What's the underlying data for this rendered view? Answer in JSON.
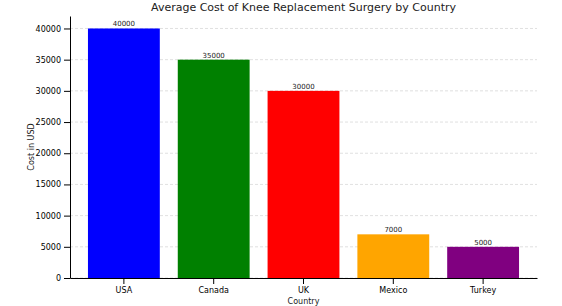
{
  "chart_data": {
    "type": "bar",
    "title": "Average Cost of Knee Replacement Surgery by Country",
    "x_label": "Country",
    "y_label": "Cost in USD",
    "categories": [
      "USA",
      "Canada",
      "UK",
      "Mexico",
      "Turkey"
    ],
    "values": [
      40000,
      35000,
      30000,
      7000,
      5000
    ],
    "colors": [
      "#0000ff",
      "#008000",
      "#ff0000",
      "#ffa500",
      "#800080"
    ],
    "ylim": [
      0,
      42000
    ],
    "yticks": [
      0,
      5000,
      10000,
      15000,
      20000,
      25000,
      30000,
      35000,
      40000
    ],
    "grid": true,
    "data_labels": true
  }
}
